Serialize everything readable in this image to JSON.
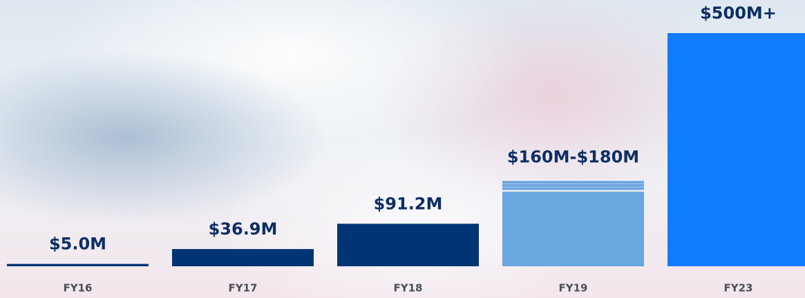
{
  "chart_data": {
    "type": "bar",
    "categories": [
      "FY16",
      "FY17",
      "FY18",
      "FY19",
      "FY23"
    ],
    "values": [
      5.0,
      36.9,
      91.2,
      160,
      500
    ],
    "range_high": [
      null,
      null,
      null,
      180,
      null
    ],
    "value_labels": [
      "$5.0M",
      "$36.9M",
      "$91.2M",
      "$160M-$180M",
      "$500M+"
    ],
    "colors": [
      "#003473",
      "#003473",
      "#003473",
      "#6aa6e0",
      "#117bff"
    ]
  }
}
